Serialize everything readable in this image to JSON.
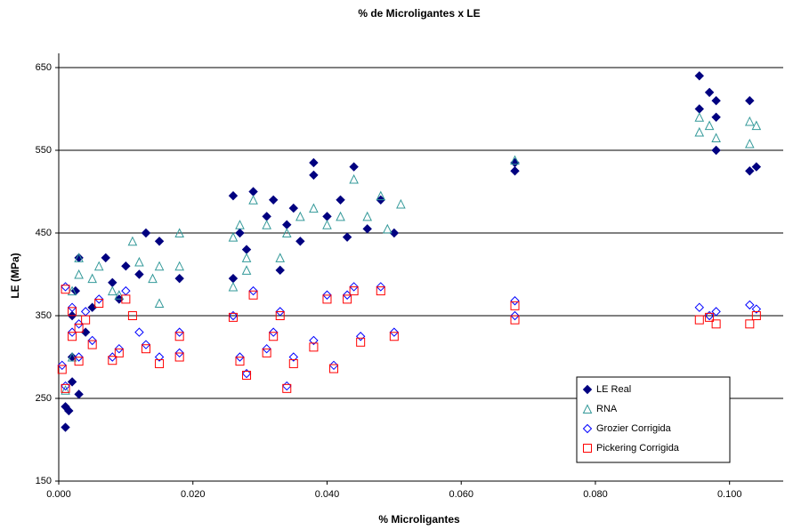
{
  "chart_data": {
    "type": "scatter",
    "title": "% de Microligantes x LE",
    "x_label": "% Microligantes",
    "y_label": "LE (MPa)",
    "xlim": [
      0,
      0.108
    ],
    "ylim": [
      150,
      650
    ],
    "xticks": [
      {
        "value": 0,
        "label": "0.000"
      },
      {
        "value": 0.02,
        "label": "0.020"
      },
      {
        "value": 0.04,
        "label": "0.040"
      },
      {
        "value": 0.06,
        "label": "0.060"
      },
      {
        "value": 0.08,
        "label": "0.080"
      },
      {
        "value": 0.1,
        "label": "0.100"
      }
    ],
    "yticks": [
      150,
      250,
      350,
      450,
      550,
      650
    ],
    "grid": true,
    "legend": "lower right",
    "series": [
      {
        "name": "LE Real",
        "color": "#000080",
        "marker": "filled-diamond",
        "x": [
          0.001,
          0.001,
          0.0015,
          0.002,
          0.002,
          0.002,
          0.0025,
          0.003,
          0.003,
          0.004,
          0.005,
          0.007,
          0.008,
          0.009,
          0.01,
          0.012,
          0.013,
          0.015,
          0.018,
          0.026,
          0.026,
          0.027,
          0.028,
          0.029,
          0.031,
          0.032,
          0.033,
          0.034,
          0.035,
          0.036,
          0.038,
          0.038,
          0.04,
          0.042,
          0.043,
          0.044,
          0.046,
          0.048,
          0.05,
          0.068,
          0.068,
          0.0955,
          0.0955,
          0.097,
          0.098,
          0.098,
          0.098,
          0.103,
          0.103,
          0.104
        ],
        "values": [
          215,
          240,
          235,
          270,
          300,
          350,
          380,
          420,
          255,
          330,
          360,
          420,
          390,
          370,
          410,
          400,
          450,
          440,
          395,
          495,
          395,
          450,
          430,
          500,
          470,
          490,
          405,
          460,
          480,
          440,
          535,
          520,
          470,
          490,
          445,
          530,
          455,
          490,
          450,
          525,
          535,
          640,
          600,
          620,
          590,
          550,
          610,
          525,
          610,
          530
        ]
      },
      {
        "name": "RNA",
        "color": "#339999",
        "marker": "triangle",
        "x": [
          0.001,
          0.002,
          0.002,
          0.003,
          0.003,
          0.005,
          0.006,
          0.008,
          0.009,
          0.011,
          0.012,
          0.014,
          0.015,
          0.015,
          0.018,
          0.018,
          0.026,
          0.026,
          0.027,
          0.028,
          0.028,
          0.029,
          0.031,
          0.033,
          0.034,
          0.036,
          0.038,
          0.04,
          0.042,
          0.044,
          0.046,
          0.048,
          0.049,
          0.051,
          0.068,
          0.0955,
          0.0955,
          0.097,
          0.098,
          0.103,
          0.103,
          0.104
        ],
        "values": [
          260,
          300,
          380,
          400,
          420,
          395,
          410,
          380,
          375,
          440,
          415,
          395,
          410,
          365,
          450,
          410,
          385,
          445,
          460,
          420,
          405,
          490,
          460,
          420,
          450,
          470,
          480,
          460,
          470,
          515,
          470,
          495,
          455,
          485,
          538,
          590,
          572,
          580,
          565,
          585,
          558,
          580
        ]
      },
      {
        "name": "Grozier Corrigida",
        "color": "#0000ff",
        "marker": "diamond",
        "x": [
          0.0005,
          0.001,
          0.001,
          0.002,
          0.002,
          0.003,
          0.003,
          0.004,
          0.005,
          0.006,
          0.008,
          0.009,
          0.01,
          0.012,
          0.013,
          0.015,
          0.018,
          0.018,
          0.026,
          0.027,
          0.028,
          0.029,
          0.031,
          0.032,
          0.033,
          0.034,
          0.035,
          0.038,
          0.04,
          0.041,
          0.043,
          0.044,
          0.045,
          0.048,
          0.05,
          0.068,
          0.068,
          0.0955,
          0.097,
          0.098,
          0.103,
          0.104
        ],
        "values": [
          290,
          265,
          385,
          330,
          360,
          340,
          300,
          355,
          320,
          370,
          300,
          310,
          380,
          330,
          315,
          300,
          330,
          305,
          350,
          300,
          280,
          380,
          310,
          330,
          355,
          265,
          300,
          320,
          375,
          290,
          375,
          385,
          325,
          385,
          330,
          368,
          350,
          360,
          350,
          355,
          363,
          358
        ]
      },
      {
        "name": "Pickering Corrigida",
        "color": "#ff0000",
        "marker": "square",
        "x": [
          0.0005,
          0.001,
          0.001,
          0.002,
          0.002,
          0.003,
          0.003,
          0.004,
          0.005,
          0.006,
          0.008,
          0.009,
          0.01,
          0.011,
          0.013,
          0.015,
          0.018,
          0.018,
          0.026,
          0.027,
          0.028,
          0.029,
          0.031,
          0.032,
          0.033,
          0.034,
          0.035,
          0.038,
          0.04,
          0.041,
          0.043,
          0.044,
          0.045,
          0.048,
          0.05,
          0.068,
          0.068,
          0.0955,
          0.097,
          0.098,
          0.103,
          0.104
        ],
        "values": [
          285,
          262,
          382,
          325,
          355,
          335,
          295,
          345,
          315,
          365,
          296,
          305,
          370,
          350,
          310,
          292,
          325,
          300,
          348,
          295,
          278,
          375,
          305,
          325,
          350,
          262,
          292,
          312,
          370,
          286,
          370,
          380,
          318,
          380,
          325,
          362,
          345,
          345,
          348,
          340,
          340,
          350
        ]
      }
    ]
  }
}
